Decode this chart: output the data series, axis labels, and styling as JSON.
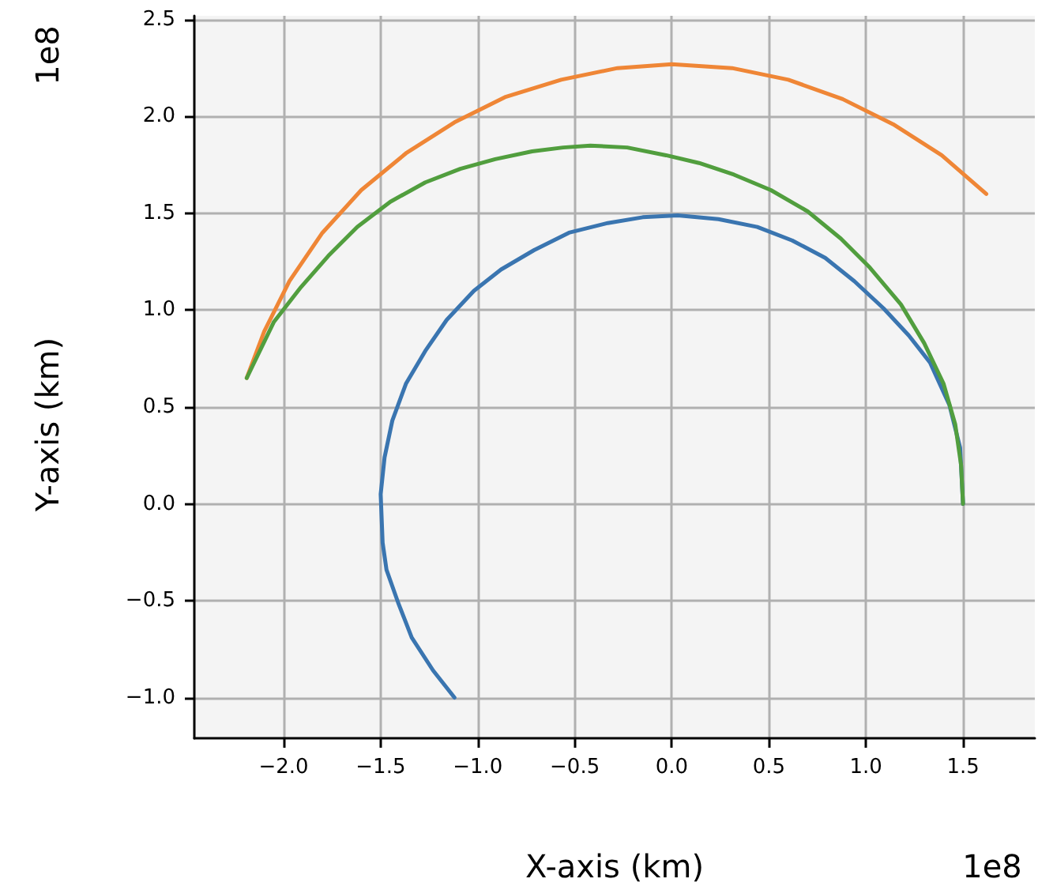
{
  "chart_data": {
    "type": "line",
    "xlabel": "X-axis (km)",
    "ylabel": "Y-axis (km)",
    "annotations": [
      "1e8",
      "1e8"
    ],
    "xlim": [
      -2.46,
      1.87
    ],
    "ylim": [
      -1.21,
      2.52
    ],
    "xticks": [
      {
        "value": -2,
        "label": "−2.0"
      },
      {
        "value": -1.5,
        "label": "−1.5"
      },
      {
        "value": -1,
        "label": "−1.0"
      },
      {
        "value": -0.5,
        "label": "−0.5"
      },
      {
        "value": 0,
        "label": "0.0"
      },
      {
        "value": 0.5,
        "label": "0.5"
      },
      {
        "value": 1,
        "label": "1.0"
      },
      {
        "value": 1.5,
        "label": "1.5"
      }
    ],
    "yticks": [
      {
        "value": -1,
        "label": "−1.0"
      },
      {
        "value": -0.5,
        "label": "−0.5"
      },
      {
        "value": 0,
        "label": "0.0"
      },
      {
        "value": 0.5,
        "label": "0.5"
      },
      {
        "value": 1,
        "label": "1.0"
      },
      {
        "value": 1.5,
        "label": "1.5"
      },
      {
        "value": 2,
        "label": "2.0"
      },
      {
        "value": 2.5,
        "label": "2.5"
      }
    ],
    "grid": true,
    "marker": "none",
    "line_style": "solid",
    "series": [
      {
        "color": "#3a75b0",
        "x": [
          1.5,
          1.485,
          1.43,
          1.33,
          1.22,
          1.09,
          0.94,
          0.79,
          0.62,
          0.44,
          0.24,
          0.03,
          -0.15,
          -0.33,
          -0.53,
          -0.71,
          -0.88,
          -1.02,
          -1.16,
          -1.27,
          -1.37,
          -1.44,
          -1.48,
          -1.5,
          -1.49,
          -1.47,
          -1.41,
          -1.34,
          -1.23,
          -1.12
        ],
        "values": [
          0,
          0.29,
          0.51,
          0.73,
          0.87,
          1.01,
          1.15,
          1.27,
          1.36,
          1.43,
          1.47,
          1.49,
          1.48,
          1.45,
          1.4,
          1.31,
          1.21,
          1.1,
          0.95,
          0.79,
          0.62,
          0.43,
          0.24,
          0.05,
          -0.2,
          -0.34,
          -0.51,
          -0.69,
          -0.86,
          -1.0
        ]
      },
      {
        "color": "#ef8636",
        "x": [
          -2.19,
          -2.1,
          -1.97,
          -1.8,
          -1.6,
          -1.37,
          -1.12,
          -0.86,
          -0.57,
          -0.28,
          0,
          0.31,
          0.6,
          0.88,
          1.14,
          1.39,
          1.62
        ],
        "values": [
          0.65,
          0.89,
          1.15,
          1.4,
          1.62,
          1.81,
          1.97,
          2.1,
          2.19,
          2.25,
          2.27,
          2.25,
          2.19,
          2.09,
          1.96,
          1.8,
          1.6
        ]
      },
      {
        "color": "#519e3e",
        "x": [
          -2.19,
          -2.05,
          -1.91,
          -1.77,
          -1.62,
          -1.45,
          -1.27,
          -1.09,
          -0.91,
          -0.72,
          -0.56,
          -0.42,
          -0.23,
          -0.03,
          0.14,
          0.32,
          0.51,
          0.7,
          0.87,
          1.02,
          1.18,
          1.3,
          1.4,
          1.46,
          1.49,
          1.5
        ],
        "values": [
          0.65,
          0.94,
          1.12,
          1.28,
          1.43,
          1.56,
          1.66,
          1.73,
          1.78,
          1.82,
          1.84,
          1.85,
          1.84,
          1.8,
          1.76,
          1.7,
          1.62,
          1.51,
          1.37,
          1.22,
          1.03,
          0.83,
          0.62,
          0.41,
          0.2,
          0
        ]
      }
    ]
  }
}
